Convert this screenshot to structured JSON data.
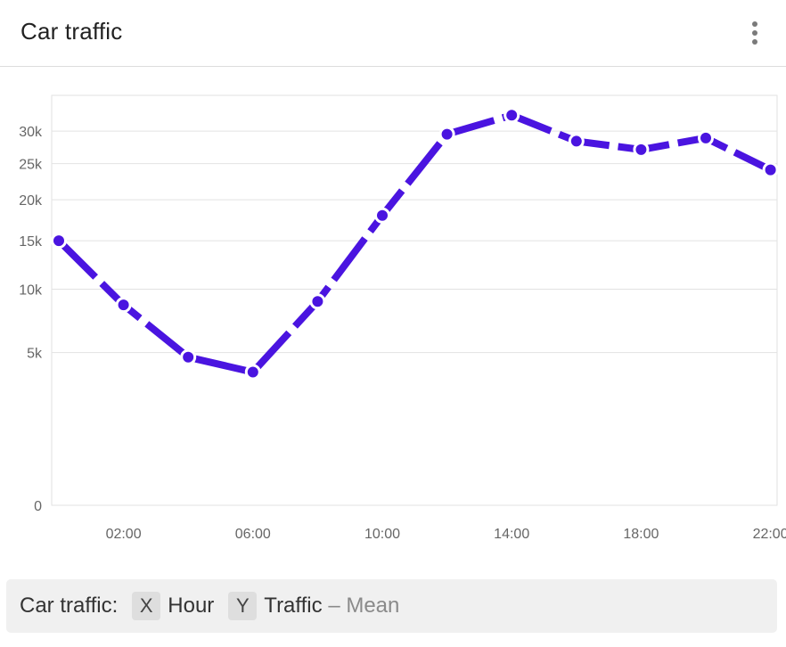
{
  "header": {
    "title": "Car traffic",
    "menu_icon": "more-vertical-icon"
  },
  "chart_data": {
    "type": "line",
    "title": "Car traffic",
    "x": [
      "00:00",
      "02:00",
      "04:00",
      "06:00",
      "08:00",
      "10:00",
      "12:00",
      "14:00",
      "16:00",
      "18:00",
      "20:00",
      "22:00"
    ],
    "x_tick_labels": [
      "02:00",
      "06:00",
      "10:00",
      "14:00",
      "18:00",
      "22:00"
    ],
    "y_scale": "sqrt",
    "y_ticks": [
      {
        "value": 0,
        "label": "0"
      },
      {
        "value": 5000,
        "label": "5k"
      },
      {
        "value": 10000,
        "label": "10k"
      },
      {
        "value": 15000,
        "label": "15k"
      },
      {
        "value": 20000,
        "label": "20k"
      },
      {
        "value": 25000,
        "label": "25k"
      },
      {
        "value": 30000,
        "label": "30k"
      }
    ],
    "ylim": [
      0,
      36000
    ],
    "series": [
      {
        "values": [
          15000,
          8600,
          4700,
          3800,
          8900,
          18000,
          29500,
          32600,
          28400,
          27100,
          28900,
          24100
        ],
        "color": "#4a14e0",
        "style": "dashed"
      }
    ],
    "grid": true
  },
  "legend": {
    "prefix": "Car traffic",
    "separator": ":",
    "x_badge": "X",
    "x_field": "Hour",
    "y_badge": "Y",
    "y_field": "Traffic",
    "y_agg": "– Mean"
  }
}
